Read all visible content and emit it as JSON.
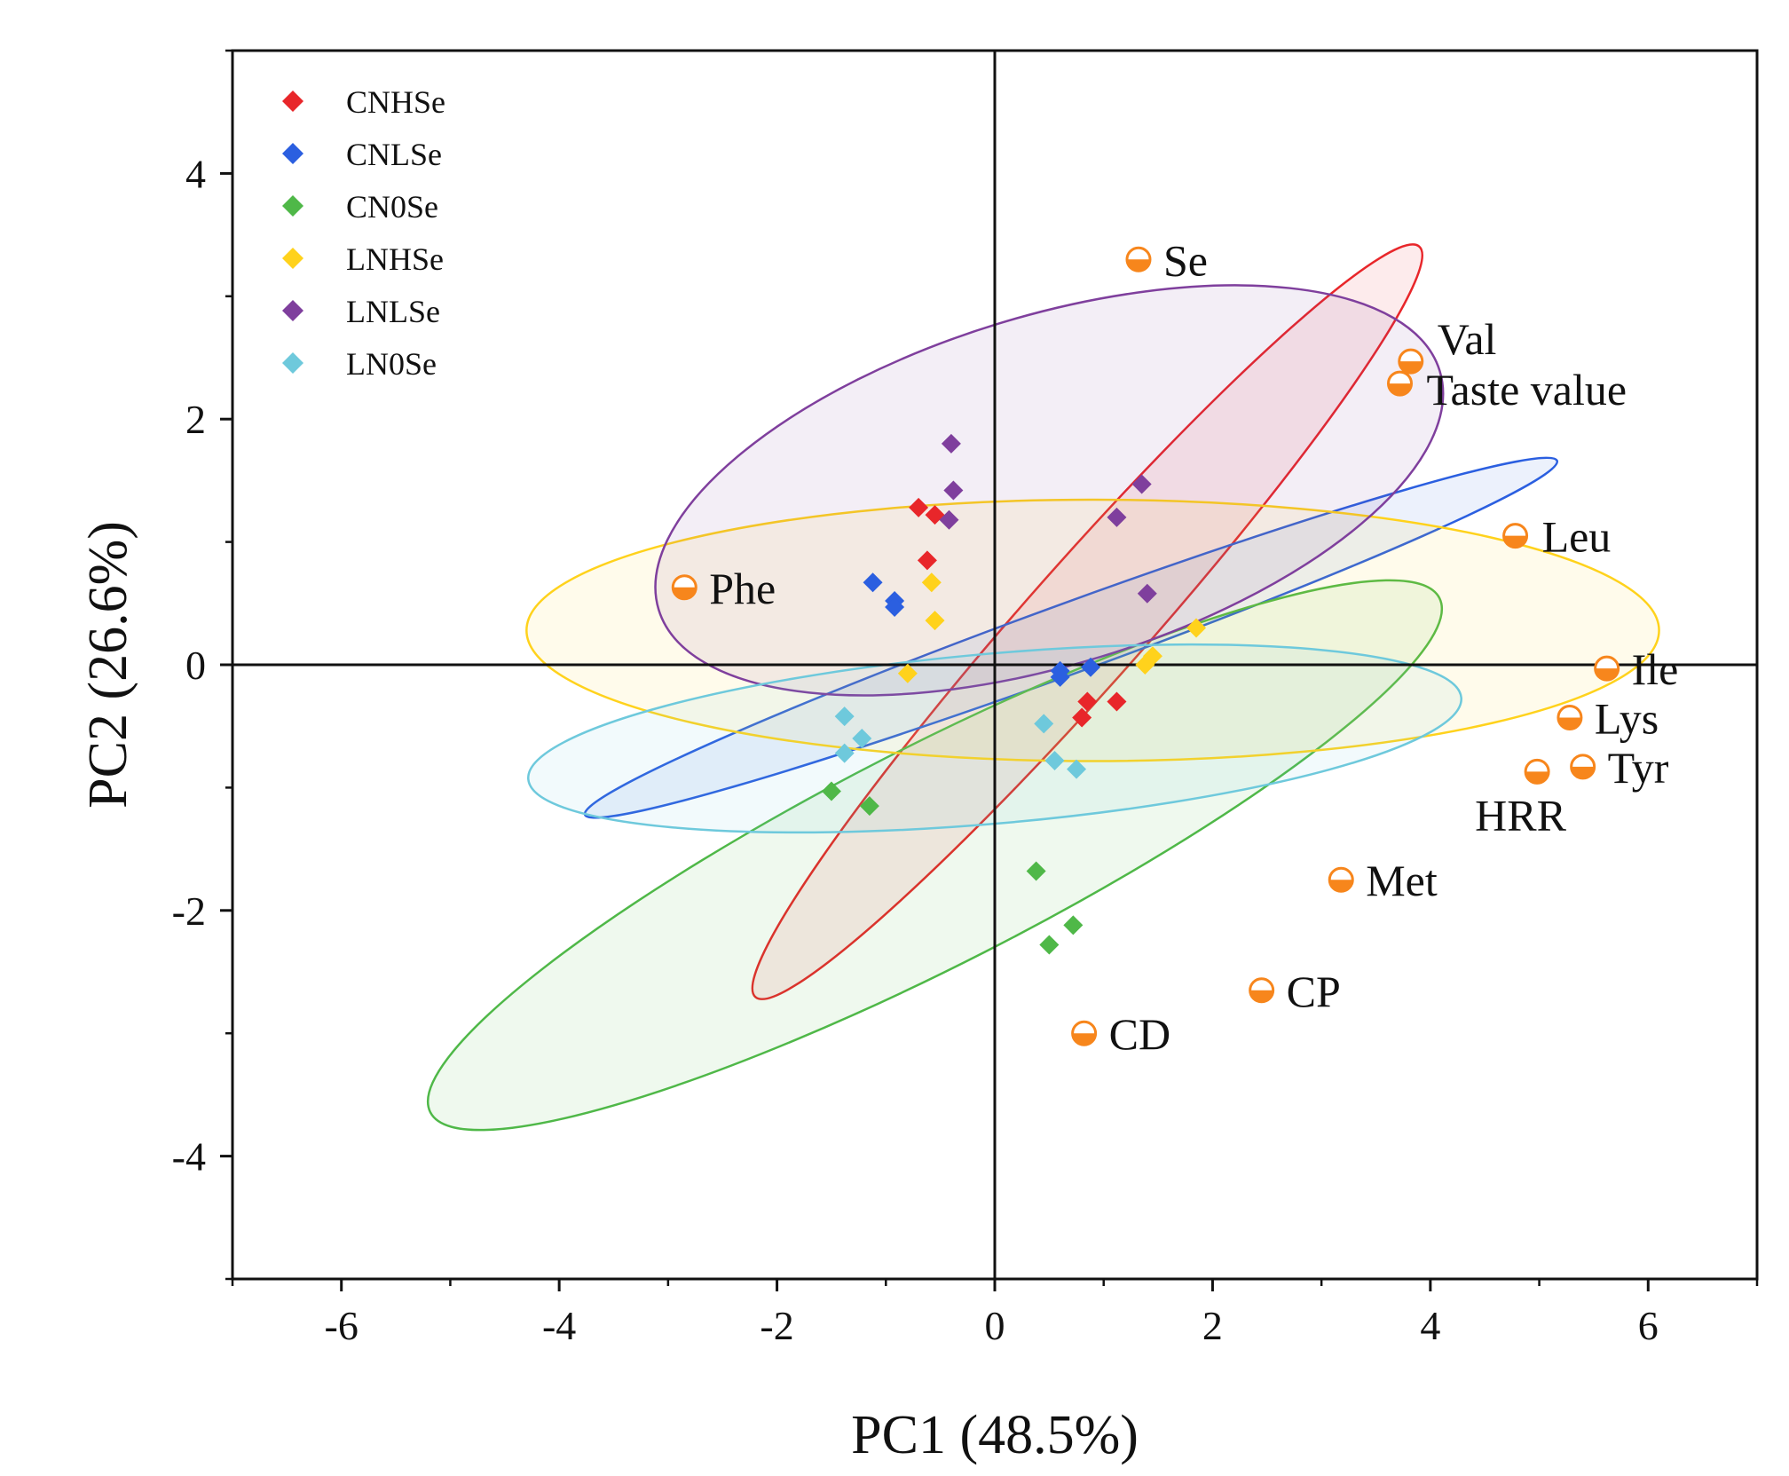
{
  "chart_data": {
    "type": "scatter",
    "title": "",
    "xlabel": "PC1 (48.5%)",
    "ylabel": "PC2 (26.6%)",
    "xlim": [
      -7,
      7
    ],
    "ylim": [
      -5,
      5
    ],
    "xticks": [
      "-6",
      "-4",
      "-2",
      "0",
      "2",
      "4",
      "6"
    ],
    "yticks": [
      "-4",
      "-2",
      "0",
      "2",
      "4"
    ],
    "legend_position": "top-left",
    "series": [
      {
        "name": "CNHSe",
        "color": "#e8262a",
        "points": [
          [
            -0.7,
            1.28
          ],
          [
            -0.55,
            1.22
          ],
          [
            -0.62,
            0.85
          ],
          [
            0.85,
            -0.3
          ],
          [
            1.12,
            -0.3
          ],
          [
            0.8,
            -0.43
          ]
        ],
        "ellipse": {
          "cx": 0.85,
          "cy": 0.35,
          "rx": 4.6,
          "ry": 0.55,
          "angle_deg": -48.5
        }
      },
      {
        "name": "CNLSe",
        "color": "#2b5fe0",
        "points": [
          [
            -1.12,
            0.67
          ],
          [
            -0.92,
            0.52
          ],
          [
            -0.92,
            0.47
          ],
          [
            0.6,
            -0.05
          ],
          [
            0.88,
            -0.02
          ],
          [
            0.6,
            -0.1
          ]
        ],
        "ellipse": {
          "cx": 0.7,
          "cy": 0.22,
          "rx": 4.75,
          "ry": 0.32,
          "angle_deg": -20
        }
      },
      {
        "name": "CN0Se",
        "color": "#4fb848",
        "points": [
          [
            -1.5,
            -1.03
          ],
          [
            -1.15,
            -1.15
          ],
          [
            0.38,
            -1.68
          ],
          [
            0.72,
            -2.12
          ],
          [
            0.5,
            -2.28
          ]
        ],
        "ellipse": {
          "cx": -0.55,
          "cy": -1.55,
          "rx": 5.2,
          "ry": 1.0,
          "angle_deg": -27
        }
      },
      {
        "name": "LNHSe",
        "color": "#ffd21c",
        "points": [
          [
            -0.58,
            0.67
          ],
          [
            -0.55,
            0.36
          ],
          [
            -0.8,
            -0.07
          ],
          [
            1.38,
            0.0
          ],
          [
            1.45,
            0.07
          ],
          [
            1.85,
            0.3
          ]
        ],
        "ellipse": {
          "cx": 0.9,
          "cy": 0.28,
          "rx": 5.2,
          "ry": 1.2,
          "angle_deg": 0
        }
      },
      {
        "name": "LNLSe",
        "color": "#7f3f9d",
        "points": [
          [
            -0.4,
            1.8
          ],
          [
            -0.38,
            1.42
          ],
          [
            -0.42,
            1.18
          ],
          [
            1.12,
            1.2
          ],
          [
            1.35,
            1.47
          ],
          [
            1.4,
            0.58
          ]
        ],
        "ellipse": {
          "cx": 0.5,
          "cy": 1.42,
          "rx": 3.75,
          "ry": 1.6,
          "angle_deg": -17
        }
      },
      {
        "name": "LN0Se",
        "color": "#6ec9dc",
        "points": [
          [
            -1.38,
            -0.42
          ],
          [
            -1.38,
            -0.72
          ],
          [
            -1.22,
            -0.6
          ],
          [
            0.45,
            -0.48
          ],
          [
            0.55,
            -0.78
          ],
          [
            0.75,
            -0.85
          ]
        ],
        "ellipse": {
          "cx": 0.0,
          "cy": -0.6,
          "rx": 4.3,
          "ry": 0.78,
          "angle_deg": -5
        }
      }
    ],
    "variables": [
      {
        "name": "Se",
        "x": 1.32,
        "y": 3.3
      },
      {
        "name": "Val",
        "x": 3.82,
        "y": 2.47
      },
      {
        "name": "Taste value",
        "x": 3.72,
        "y": 2.29
      },
      {
        "name": "Leu",
        "x": 4.78,
        "y": 1.05
      },
      {
        "name": "Phe",
        "x": -2.85,
        "y": 0.63
      },
      {
        "name": "Ile",
        "x": 5.62,
        "y": -0.03
      },
      {
        "name": "Lys",
        "x": 5.28,
        "y": -0.43
      },
      {
        "name": "Tyr",
        "x": 5.4,
        "y": -0.83
      },
      {
        "name": "HRR",
        "x": 4.98,
        "y": -0.87
      },
      {
        "name": "Met",
        "x": 3.18,
        "y": -1.75
      },
      {
        "name": "CP",
        "x": 2.45,
        "y": -2.65
      },
      {
        "name": "CD",
        "x": 0.82,
        "y": -3.0
      }
    ],
    "variable_marker_color": "#f7861c"
  }
}
